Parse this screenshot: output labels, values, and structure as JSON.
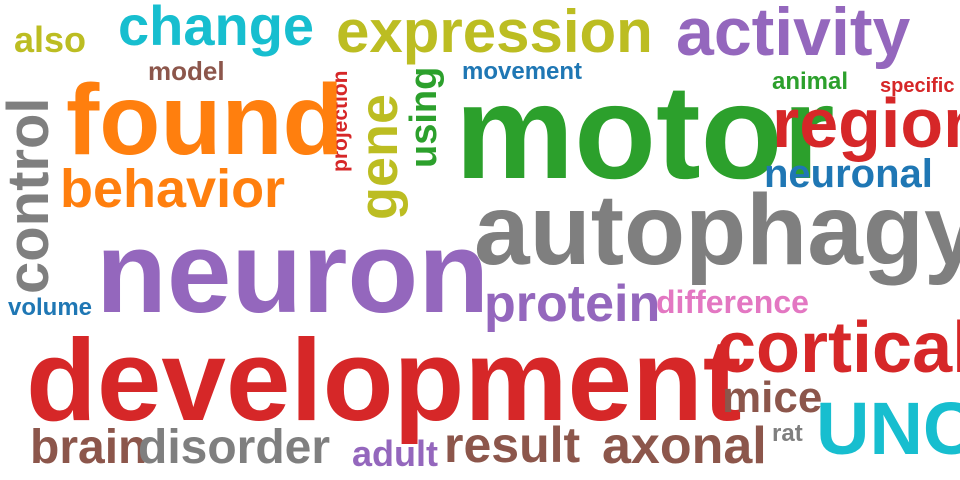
{
  "colors": {
    "red": "#d62728",
    "orange": "#ff7f0e",
    "green": "#2ca02c",
    "blue": "#1f77b4",
    "purple": "#9467bd",
    "olive": "#bcbd22",
    "cyan": "#17becf",
    "gray": "#7f7f7f",
    "brown": "#8c564b",
    "pink": "#e377c2"
  },
  "words": [
    {
      "text": "also",
      "color": "#bcbd22"
    },
    {
      "text": "change",
      "color": "#17becf"
    },
    {
      "text": "expression",
      "color": "#bcbd22"
    },
    {
      "text": "activity",
      "color": "#9467bd"
    },
    {
      "text": "model",
      "color": "#8c564b"
    },
    {
      "text": "projection",
      "color": "#d62728"
    },
    {
      "text": "movement",
      "color": "#1f77b4"
    },
    {
      "text": "animal",
      "color": "#2ca02c"
    },
    {
      "text": "specific",
      "color": "#d62728"
    },
    {
      "text": "found",
      "color": "#ff7f0e"
    },
    {
      "text": "gene",
      "color": "#bcbd22"
    },
    {
      "text": "using",
      "color": "#2ca02c"
    },
    {
      "text": "motor",
      "color": "#2ca02c"
    },
    {
      "text": "region",
      "color": "#d62728"
    },
    {
      "text": "control",
      "color": "#7f7f7f"
    },
    {
      "text": "behavior",
      "color": "#ff7f0e"
    },
    {
      "text": "neuronal",
      "color": "#1f77b4"
    },
    {
      "text": "autophagy",
      "color": "#7f7f7f"
    },
    {
      "text": "neuron",
      "color": "#9467bd"
    },
    {
      "text": "volume",
      "color": "#1f77b4"
    },
    {
      "text": "protein",
      "color": "#9467bd"
    },
    {
      "text": "difference",
      "color": "#e377c2"
    },
    {
      "text": "cortical",
      "color": "#d62728"
    },
    {
      "text": "development",
      "color": "#d62728"
    },
    {
      "text": "mice",
      "color": "#8c564b"
    },
    {
      "text": "rat",
      "color": "#7f7f7f"
    },
    {
      "text": "UNC",
      "color": "#17becf"
    },
    {
      "text": "brain",
      "color": "#8c564b"
    },
    {
      "text": "disorder",
      "color": "#7f7f7f"
    },
    {
      "text": "adult",
      "color": "#9467bd"
    },
    {
      "text": "result",
      "color": "#8c564b"
    },
    {
      "text": "axonal",
      "color": "#8c564b"
    }
  ]
}
